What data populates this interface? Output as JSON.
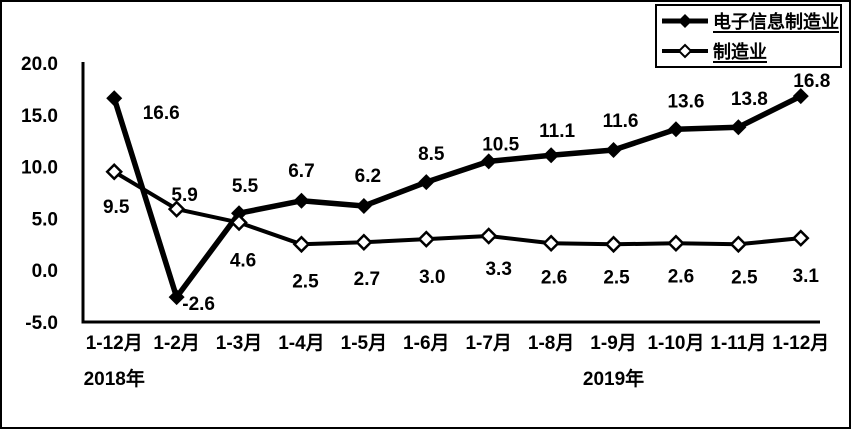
{
  "chart_data": {
    "type": "line",
    "title": "",
    "categories": [
      "1-12月",
      "1-2月",
      "1-3月",
      "1-4月",
      "1-5月",
      "1-6月",
      "1-7月",
      "1-8月",
      "1-9月",
      "1-10月",
      "1-11月",
      "1-12月"
    ],
    "series": [
      {
        "name": "电子信息制造业",
        "marker": "filled-diamond",
        "values": [
          16.6,
          -2.6,
          5.5,
          6.7,
          6.2,
          8.5,
          10.5,
          11.1,
          11.6,
          13.6,
          13.8,
          16.8
        ]
      },
      {
        "name": "制造业",
        "marker": "open-diamond",
        "values": [
          9.5,
          5.9,
          4.6,
          2.5,
          2.7,
          3.0,
          3.3,
          2.6,
          2.5,
          2.6,
          2.5,
          3.1
        ]
      }
    ],
    "ylim": [
      -5,
      20
    ],
    "y_ticks": [
      20,
      15,
      10,
      5,
      0,
      -5
    ],
    "y_tick_labels": [
      "20.0",
      "15.0",
      "10.0",
      "5.0",
      "0.0",
      "-5.0"
    ],
    "year_labels": [
      {
        "text": "2018年",
        "anchor_category_index": 0
      },
      {
        "text": "2019年",
        "anchor_category_index": 8
      }
    ],
    "data_labels": true,
    "grid": false,
    "legend_position": "top-right",
    "colors": {
      "series": "#000000",
      "background": "#ffffff",
      "border": "#000000"
    }
  }
}
